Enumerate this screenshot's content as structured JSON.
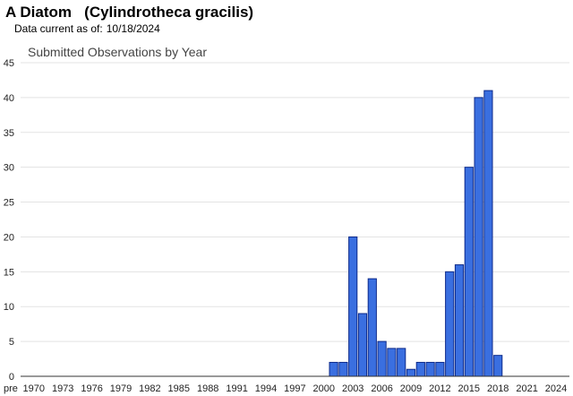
{
  "header": {
    "title": "A Diatom   (Cylindrotheca gracilis)",
    "data_current_label": "Data current as of:",
    "data_current_date": "10/18/2024"
  },
  "chart_data": {
    "type": "bar",
    "title": "Submitted Observations by Year",
    "xlabel": "",
    "ylabel": "",
    "ylim": [
      0,
      45
    ],
    "y_ticks": [
      0,
      5,
      10,
      15,
      20,
      25,
      30,
      35,
      40,
      45
    ],
    "x_tick_labels": [
      "pre",
      "1970",
      "1973",
      "1976",
      "1979",
      "1982",
      "1985",
      "1988",
      "1991",
      "1994",
      "1997",
      "2000",
      "2003",
      "2006",
      "2009",
      "2012",
      "2015",
      "2018",
      "2021",
      "2024"
    ],
    "categories": [
      "pre",
      "1970",
      "1971",
      "1972",
      "1973",
      "1974",
      "1975",
      "1976",
      "1977",
      "1978",
      "1979",
      "1980",
      "1981",
      "1982",
      "1983",
      "1984",
      "1985",
      "1986",
      "1987",
      "1988",
      "1989",
      "1990",
      "1991",
      "1992",
      "1993",
      "1994",
      "1995",
      "1996",
      "1997",
      "1998",
      "1999",
      "2000",
      "2001",
      "2002",
      "2003",
      "2004",
      "2005",
      "2006",
      "2007",
      "2008",
      "2009",
      "2010",
      "2011",
      "2012",
      "2013",
      "2014",
      "2015",
      "2016",
      "2017",
      "2018",
      "2019",
      "2020",
      "2021",
      "2022",
      "2023",
      "2024"
    ],
    "values": [
      0,
      0,
      0,
      0,
      0,
      0,
      0,
      0,
      0,
      0,
      0,
      0,
      0,
      0,
      0,
      0,
      0,
      0,
      0,
      0,
      0,
      0,
      0,
      0,
      0,
      0,
      0,
      0,
      0,
      0,
      0,
      0,
      2,
      2,
      20,
      9,
      14,
      5,
      4,
      4,
      1,
      2,
      2,
      2,
      15,
      16,
      30,
      40,
      41,
      3,
      0,
      0,
      0,
      0,
      0,
      0
    ],
    "grid": true,
    "colors": {
      "bar_fill": "#3a6fe0",
      "bar_stroke": "#0d2a8a",
      "grid": "#e3e3e3",
      "axis": "#333333"
    }
  }
}
